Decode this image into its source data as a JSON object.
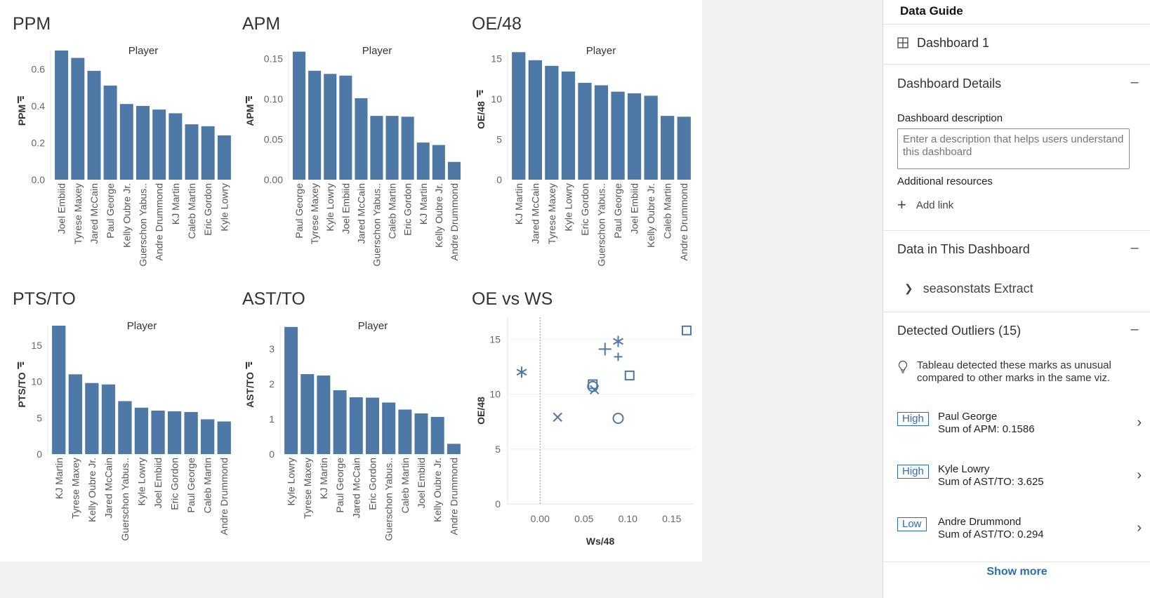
{
  "colors": {
    "bar": "#4e79a7",
    "accent": "#2b6db5",
    "panel_bg": "#ffffff",
    "outside_bg": "#f2f2f2"
  },
  "charts": [
    {
      "key": "ppm",
      "title": "PPM",
      "header": "Player",
      "ylabel": "PPM",
      "yticks": [
        "0.0",
        "0.2",
        "0.4",
        "0.6"
      ],
      "ylim": [
        0,
        0.7
      ]
    },
    {
      "key": "apm",
      "title": "APM",
      "header": "Player",
      "ylabel": "APM",
      "yticks": [
        "0.00",
        "0.05",
        "0.10",
        "0.15"
      ],
      "ylim": [
        0,
        0.16
      ]
    },
    {
      "key": "oe48",
      "title": "OE/48",
      "header": "Player",
      "ylabel": "OE/48",
      "yticks": [
        "0",
        "5",
        "10",
        "15"
      ],
      "ylim": [
        0,
        16
      ]
    },
    {
      "key": "ptsto",
      "title": "PTS/TO",
      "header": "Player",
      "ylabel": "PTS/TO",
      "yticks": [
        "0",
        "5",
        "10",
        "15"
      ],
      "ylim": [
        0,
        17.7
      ]
    },
    {
      "key": "astto",
      "title": "AST/TO",
      "header": "Player",
      "ylabel": "AST/TO",
      "yticks": [
        "0",
        "1",
        "2",
        "3"
      ],
      "ylim": [
        0,
        3.66
      ]
    }
  ],
  "scatter_header": {
    "title": "OE vs WS",
    "xlabel": "Ws/48",
    "ylabel": "OE/48",
    "xticks": [
      "0.00",
      "0.05",
      "0.10",
      "0.15"
    ],
    "yticks": [
      "0",
      "5",
      "10",
      "15"
    ]
  },
  "chart_data": [
    {
      "type": "bar",
      "title": "PPM",
      "ylabel": "PPM",
      "categories": [
        "Joel Embiid",
        "Tyrese Maxey",
        "Jared McCain",
        "Paul George",
        "Kelly Oubre Jr.",
        "Guerschon Yabus..",
        "Andre Drummond",
        "KJ Martin",
        "Caleb Martin",
        "Eric Gordon",
        "Kyle Lowry"
      ],
      "values": [
        0.7,
        0.66,
        0.59,
        0.51,
        0.41,
        0.4,
        0.38,
        0.36,
        0.3,
        0.29,
        0.24
      ]
    },
    {
      "type": "bar",
      "title": "APM",
      "ylabel": "APM",
      "categories": [
        "Paul George",
        "Tyrese Maxey",
        "Kyle Lowry",
        "Joel Embiid",
        "Jared McCain",
        "Guerschon Yabus..",
        "Caleb Martin",
        "Eric Gordon",
        "KJ Martin",
        "Kelly Oubre Jr.",
        "Andre Drummond"
      ],
      "values": [
        0.1586,
        0.135,
        0.131,
        0.129,
        0.101,
        0.079,
        0.079,
        0.078,
        0.046,
        0.043,
        0.022
      ]
    },
    {
      "type": "bar",
      "title": "OE/48",
      "ylabel": "OE/48",
      "categories": [
        "KJ Martin",
        "Jared McCain",
        "Tyrese Maxey",
        "Kyle Lowry",
        "Eric Gordon",
        "Guerschon Yabus..",
        "Paul George",
        "Joel Embiid",
        "Kelly Oubre Jr.",
        "Caleb Martin",
        "Andre Drummond"
      ],
      "values": [
        15.8,
        14.8,
        14.1,
        13.4,
        12.0,
        11.7,
        10.9,
        10.7,
        10.4,
        7.9,
        7.8
      ]
    },
    {
      "type": "bar",
      "title": "PTS/TO",
      "ylabel": "PTS/TO",
      "categories": [
        "KJ Martin",
        "Tyrese Maxey",
        "Kelly Oubre Jr.",
        "Jared McCain",
        "Guerschon Yabus..",
        "Kyle Lowry",
        "Joel Embiid",
        "Eric Gordon",
        "Paul George",
        "Caleb Martin",
        "Andre Drummond"
      ],
      "values": [
        17.7,
        11.0,
        9.8,
        9.6,
        7.3,
        6.4,
        6.0,
        5.9,
        5.8,
        4.8,
        4.5
      ]
    },
    {
      "type": "bar",
      "title": "AST/TO",
      "ylabel": "AST/TO",
      "categories": [
        "Kyle Lowry",
        "Tyrese Maxey",
        "KJ Martin",
        "Paul George",
        "Jared McCain",
        "Eric Gordon",
        "Guerschon Yabus..",
        "Caleb Martin",
        "Joel Embiid",
        "Kelly Oubre Jr.",
        "Andre Drummond"
      ],
      "values": [
        3.625,
        2.28,
        2.24,
        1.82,
        1.62,
        1.61,
        1.47,
        1.27,
        1.16,
        1.06,
        0.294
      ]
    },
    {
      "type": "scatter",
      "title": "OE vs WS",
      "xlabel": "Ws/48",
      "ylabel": "OE/48",
      "xlim": [
        -0.037,
        0.175
      ],
      "ylim": [
        0,
        17
      ],
      "points": [
        {
          "x": 0.167,
          "y": 15.8,
          "shape": "square"
        },
        {
          "x": 0.089,
          "y": 14.8,
          "shape": "asterisk"
        },
        {
          "x": 0.074,
          "y": 14.1,
          "shape": "plus"
        },
        {
          "x": 0.089,
          "y": 13.4,
          "shape": "plus-small"
        },
        {
          "x": -0.021,
          "y": 12.0,
          "shape": "asterisk"
        },
        {
          "x": 0.102,
          "y": 11.7,
          "shape": "square"
        },
        {
          "x": 0.06,
          "y": 10.9,
          "shape": "square"
        },
        {
          "x": 0.06,
          "y": 10.7,
          "shape": "circle"
        },
        {
          "x": 0.062,
          "y": 10.4,
          "shape": "x"
        },
        {
          "x": 0.02,
          "y": 7.9,
          "shape": "x"
        },
        {
          "x": 0.089,
          "y": 7.8,
          "shape": "circle"
        }
      ]
    }
  ],
  "panel": {
    "title": "Data Guide",
    "dashboard_name": "Dashboard 1",
    "details_header": "Dashboard Details",
    "description_label": "Dashboard description",
    "description_placeholder": "Enter a description that helps users understand this dashboard",
    "resources_label": "Additional resources",
    "add_link": "Add link",
    "data_header": "Data in This Dashboard",
    "data_source": "seasonstats Extract",
    "outliers_header": "Detected Outliers (15)",
    "outliers_tip": "Tableau detected these marks as unusual compared to other marks in the same viz.",
    "outliers": [
      {
        "level": "High",
        "name": "Paul George",
        "value": "Sum of APM: 0.1586"
      },
      {
        "level": "High",
        "name": "Kyle Lowry",
        "value": "Sum of AST/TO: 3.625"
      },
      {
        "level": "Low",
        "name": "Andre Drummond",
        "value": "Sum of AST/TO: 0.294"
      }
    ],
    "show_more": "Show more",
    "collapse_icon": "minus-icon"
  }
}
